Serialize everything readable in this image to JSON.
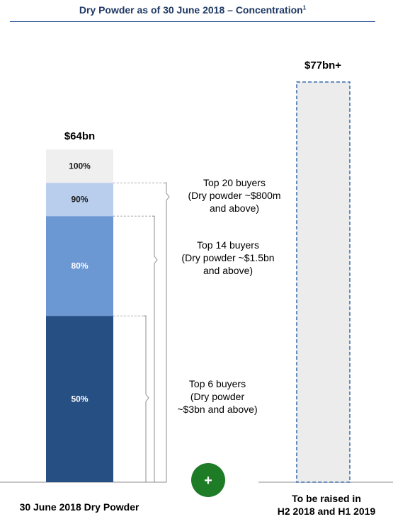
{
  "title": "Dry Powder as of 30 June 2018 – Concentration",
  "title_footnote": "1",
  "chart_data": {
    "type": "bar",
    "stacked": true,
    "categories": [
      "30 June 2018 Dry Powder",
      "To be raised in H2 2018 and H1 2019"
    ],
    "category_lines": [
      [
        "30 June 2018 Dry Powder"
      ],
      [
        "To be raised in",
        "H2 2018 and H1 2019"
      ]
    ],
    "bar_totals": [
      "$64bn",
      "$77bn+"
    ],
    "total_values_bn": [
      64,
      77
    ],
    "segments": [
      {
        "label": "50%",
        "cumulative_share": 0.5,
        "color": "#264f83"
      },
      {
        "label": "80%",
        "cumulative_share": 0.8,
        "color": "#6b97d2"
      },
      {
        "label": "90%",
        "cumulative_share": 0.9,
        "color": "#b9cdec"
      },
      {
        "label": "100%",
        "cumulative_share": 1.0,
        "color": "#efefef"
      }
    ],
    "projected_bar": {
      "fill": "#ececec",
      "border": "#3f6fad",
      "dashed": true
    },
    "annotations": [
      {
        "lines": [
          "Top 20 buyers",
          "(Dry powder ~$800m",
          "and above)"
        ],
        "covers_share": [
          0.0,
          0.9
        ]
      },
      {
        "lines": [
          "Top 14 buyers",
          "(Dry powder ~$1.5bn",
          "and above)"
        ],
        "covers_share": [
          0.0,
          0.8
        ]
      },
      {
        "lines": [
          "Top 6 buyers",
          "(Dry powder",
          "~$3bn and above)"
        ],
        "covers_share": [
          0.0,
          0.5
        ]
      }
    ],
    "plus_symbol": "+",
    "plus_color": "#1e7b26"
  }
}
